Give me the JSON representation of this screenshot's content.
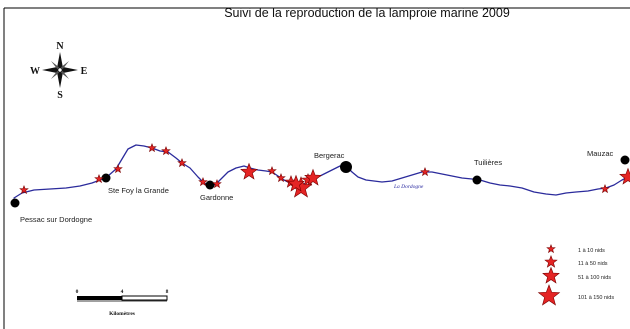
{
  "title": "Suivi de la reproduction de la lamproie marine 2009",
  "compass": {
    "north": "N",
    "south": "S",
    "east": "E",
    "west": "W"
  },
  "river_label": "La Dordogne",
  "towns": {
    "pessac": "Pessac sur Dordogne",
    "stefoy": "Ste Foy la Grande",
    "gardonne": "Gardonne",
    "bergerac": "Bergerac",
    "tuilieres": "Tuilières",
    "mauzac": "Mauzac"
  },
  "legend": {
    "items": [
      {
        "label": "1 à 10 nids",
        "size_class": 1
      },
      {
        "label": "11 à 50 nids",
        "size_class": 2
      },
      {
        "label": "51 à 100 nids",
        "size_class": 3
      },
      {
        "label": "101 à 150 nids",
        "size_class": 4
      }
    ]
  },
  "scale": {
    "ticks": [
      "0",
      "4",
      "8"
    ],
    "unit": "Kilomètres"
  },
  "colors": {
    "river": "#2b2b9c",
    "star_fill": "#e42424",
    "star_stroke": "#7a0000",
    "town_dot": "#000000",
    "frame": "#000000"
  },
  "nest_sites_size_class": [
    1,
    1,
    1,
    1,
    1,
    1,
    1,
    1,
    1,
    3,
    1,
    2,
    2,
    3,
    4,
    3,
    1,
    1,
    3
  ]
}
